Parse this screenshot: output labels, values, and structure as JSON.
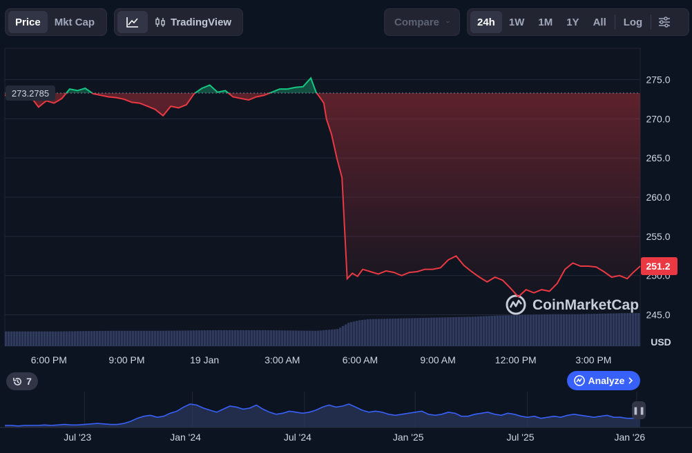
{
  "toolbar": {
    "type_tabs": [
      {
        "label": "Price",
        "active": true
      },
      {
        "label": "Mkt Cap",
        "active": false
      }
    ],
    "tradingview_label": "TradingView",
    "compare_label": "Compare",
    "range_tabs": [
      {
        "label": "24h",
        "active": true
      },
      {
        "label": "1W",
        "active": false
      },
      {
        "label": "1M",
        "active": false
      },
      {
        "label": "1Y",
        "active": false
      },
      {
        "label": "All",
        "active": false
      }
    ],
    "log_label": "Log"
  },
  "history_badge": {
    "count": "7",
    "icon": "history-icon"
  },
  "analyze_label": "Analyze",
  "watermark": "CoinMarketCap",
  "colors": {
    "up": "#16c784",
    "down": "#ea3943",
    "volume": "#2f3a5e",
    "accent": "#3861fb"
  },
  "chart_data": {
    "type": "line",
    "y_axis": {
      "ticks": [
        "275.0",
        "270.0",
        "265.0",
        "260.0",
        "255.0",
        "250.0",
        "245.0"
      ],
      "tick_values": [
        275,
        270,
        265,
        260,
        255,
        250,
        245
      ],
      "unit_label": "USD",
      "ylim": [
        241.0,
        279.0
      ],
      "position": "right"
    },
    "x_axis": {
      "ticks": [
        "6:00 PM",
        "9:00 PM",
        "19 Jan",
        "3:00 AM",
        "6:00 AM",
        "9:00 AM",
        "12:00 PM",
        "3:00 PM"
      ],
      "tick_hours": [
        1.7,
        4.7,
        7.7,
        10.7,
        13.7,
        16.7,
        19.7,
        22.7
      ],
      "xlim_hours": [
        0,
        24.5
      ]
    },
    "reference_price": 273.2785,
    "reference_label": "273.2785",
    "current_price_label": "251.2",
    "grid": true,
    "series": [
      {
        "x": [
          0,
          0.5,
          1,
          1.3,
          1.6,
          1.9,
          2.2,
          2.5,
          2.8,
          3.1,
          3.4,
          3.7,
          4,
          4.3,
          4.6,
          4.9,
          5.2,
          5.5,
          5.8,
          6.1,
          6.4,
          6.7,
          7,
          7.3,
          7.6,
          7.9,
          8.2,
          8.5,
          8.8,
          9.1,
          9.4,
          9.7,
          10,
          10.3,
          10.6,
          10.9,
          11.2,
          11.5,
          11.8,
          12,
          12.2,
          12.3,
          12.4,
          12.6,
          12.8,
          13,
          13.2,
          13.4,
          13.6,
          13.8,
          14.1,
          14.4,
          14.7,
          15,
          15.3,
          15.6,
          15.9,
          16.2,
          16.5,
          16.8,
          17.1,
          17.4,
          17.7,
          18,
          18.3,
          18.6,
          18.9,
          19.2,
          19.5,
          19.8,
          20.1,
          20.4,
          20.7,
          21,
          21.3,
          21.6,
          21.9,
          22.2,
          22.5,
          22.8,
          23.1,
          23.4,
          23.7,
          24,
          24.2,
          24.5
        ],
        "y": [
          273.0,
          273.0,
          272.8,
          271.5,
          272.3,
          272.0,
          272.6,
          273.8,
          273.6,
          273.9,
          273.2,
          273.0,
          272.8,
          272.7,
          272.5,
          272.1,
          272.0,
          271.6,
          271.2,
          270.4,
          271.6,
          271.4,
          271.8,
          273.2,
          273.9,
          274.3,
          273.4,
          273.6,
          272.8,
          272.6,
          272.4,
          272.8,
          273.0,
          273.4,
          273.8,
          273.8,
          274.0,
          274.1,
          275.2,
          273.4,
          272.5,
          272.0,
          270.0,
          268.0,
          265.0,
          262.5,
          249.6,
          250.3,
          249.9,
          250.8,
          250.5,
          250.2,
          250.6,
          250.4,
          250.0,
          250.4,
          250.5,
          250.8,
          250.8,
          251.0,
          252.0,
          252.5,
          251.3,
          250.5,
          249.8,
          249.2,
          249.8,
          249.4,
          248.4,
          247.3,
          248.2,
          247.8,
          248.2,
          248.0,
          249.0,
          250.8,
          251.6,
          251.2,
          251.2,
          251.1,
          250.5,
          249.8,
          250.0,
          249.6,
          250.3,
          251.2
        ]
      }
    ],
    "volume": {
      "x": [
        0,
        2,
        4,
        6,
        8,
        10,
        12,
        12.8,
        13.2,
        13.6,
        14,
        15,
        16,
        17,
        18,
        19,
        20,
        21,
        22,
        23,
        24,
        24.5
      ],
      "values": [
        24,
        24,
        25,
        25,
        26,
        26,
        25,
        28,
        38,
        42,
        44,
        45,
        46,
        47,
        48,
        50,
        51,
        52,
        52,
        53,
        54,
        54
      ]
    },
    "navigator": {
      "ticks": [
        "Jul '23",
        "Jan '24",
        "Jul '24",
        "Jan '25",
        "Jul '25",
        "Jan '26"
      ],
      "tick_positions": [
        0.122,
        0.278,
        0.44,
        0.6,
        0.762,
        0.92
      ],
      "values": [
        4,
        4,
        3,
        4,
        4,
        4,
        5,
        4,
        5,
        6,
        5,
        5,
        6,
        7,
        8,
        7,
        6,
        6,
        8,
        12,
        18,
        22,
        24,
        20,
        22,
        28,
        32,
        40,
        46,
        44,
        38,
        34,
        30,
        36,
        42,
        40,
        36,
        38,
        44,
        36,
        30,
        26,
        28,
        32,
        30,
        28,
        30,
        34,
        40,
        44,
        40,
        42,
        46,
        40,
        34,
        30,
        32,
        30,
        26,
        24,
        26,
        28,
        30,
        32,
        26,
        24,
        26,
        30,
        28,
        22,
        22,
        26,
        28,
        30,
        26,
        24,
        28,
        26,
        22,
        20,
        22,
        18,
        20,
        22,
        20,
        24,
        26,
        24,
        22,
        20,
        22,
        24,
        20,
        20,
        18,
        18,
        20
      ]
    }
  }
}
